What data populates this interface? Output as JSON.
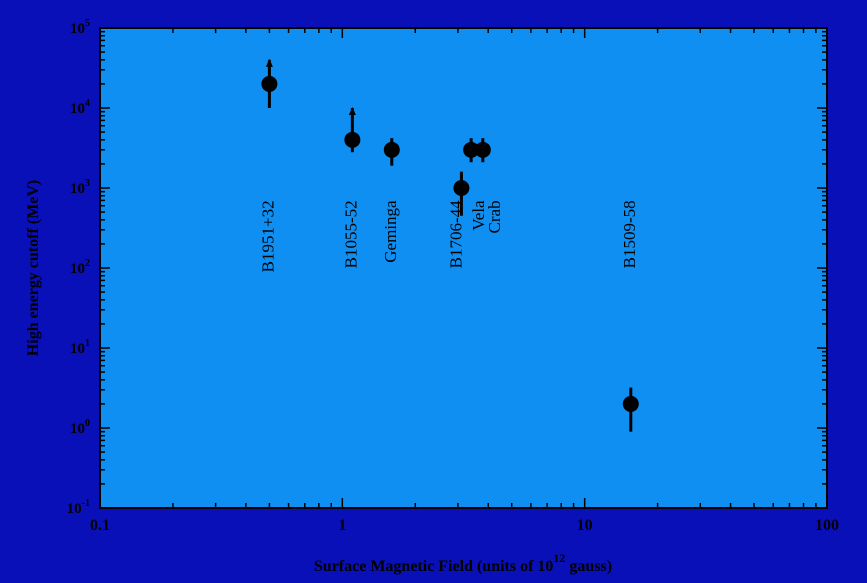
{
  "colors": {
    "frame": "#0a10b8",
    "plot_background": "#0f8ff2",
    "ink": "#000000"
  },
  "chart_data": {
    "type": "scatter",
    "xscale": "log",
    "yscale": "log",
    "xlim": [
      0.1,
      100
    ],
    "ylim": [
      0.1,
      100000
    ],
    "xlabel": "Surface Magnetic Field (units of 10",
    "xlabel_exponent": "12",
    "xlabel_tail": " gauss)",
    "ylabel": "High energy cutoff (MeV)",
    "x_ticks": [
      {
        "value": 0.1,
        "label": "0.1"
      },
      {
        "value": 1,
        "label": "1"
      },
      {
        "value": 10,
        "label": "10"
      },
      {
        "value": 100,
        "label": "100"
      }
    ],
    "y_ticks": [
      {
        "value": 0.1,
        "base": "10",
        "exp": "-1"
      },
      {
        "value": 1,
        "base": "10",
        "exp": "0"
      },
      {
        "value": 10,
        "base": "10",
        "exp": "1"
      },
      {
        "value": 100,
        "base": "10",
        "exp": "2"
      },
      {
        "value": 1000,
        "base": "10",
        "exp": "3"
      },
      {
        "value": 10000,
        "base": "10",
        "exp": "4"
      },
      {
        "value": 100000,
        "base": "10",
        "exp": "5"
      }
    ],
    "points": [
      {
        "name": "B1951+32",
        "x": 0.5,
        "y": 20000,
        "y_low": 10000,
        "y_high": 40000,
        "lower_limit": true
      },
      {
        "name": "B1055-52",
        "x": 1.1,
        "y": 4000,
        "y_low": 2800,
        "y_high": 10000,
        "lower_limit": true
      },
      {
        "name": "Geminga",
        "x": 1.6,
        "y": 3000,
        "y_low": 1900,
        "y_high": 4200,
        "lower_limit": false
      },
      {
        "name": "B1706-44",
        "x": 3.1,
        "y": 1000,
        "y_low": 450,
        "y_high": 1600,
        "lower_limit": false
      },
      {
        "name": "Vela",
        "x": 3.4,
        "y": 3000,
        "y_low": 2100,
        "y_high": 4200,
        "lower_limit": false
      },
      {
        "name": "Crab",
        "x": 3.8,
        "y": 3000,
        "y_low": 2100,
        "y_high": 4200,
        "lower_limit": false
      },
      {
        "name": "B1509-58",
        "x": 15.5,
        "y": 2,
        "y_low": 0.9,
        "y_high": 3.2,
        "lower_limit": false
      }
    ]
  }
}
